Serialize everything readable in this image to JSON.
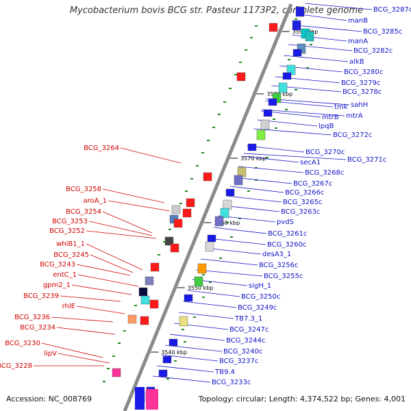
{
  "title": "Mycobacterium bovis BCG str. Pasteur 1173P2, complete genome",
  "footer": {
    "accession": "Accession: NC_008769",
    "stats": "Topology: circular; Length: 4,374,522 bp; Genes: 4,001"
  },
  "colors": {
    "backbone": "#8a8a8a",
    "forward_label": "#d00000",
    "reverse_label": "#1010c8",
    "gc_dot": "#1a8a1a"
  },
  "scale_ticks": [
    {
      "label": "3590 kbp"
    },
    {
      "label": "3580 kbp"
    },
    {
      "label": "3570 kbp"
    },
    {
      "label": "3560 kbp"
    },
    {
      "label": "3550 kbp"
    },
    {
      "label": "3540 kbp"
    }
  ],
  "genes_right": [
    "BCG_3287c",
    "manB",
    "BCG_3285c",
    "manA",
    "BCG_3282c",
    "alkB",
    "BCG_3280c",
    "BCG_3279c",
    "BCG_3278c",
    "sahH",
    "tmk",
    "mtrA",
    "mtrB",
    "lpqB",
    "BCG_3272c",
    "BCG_3271c",
    "BCG_3270c",
    "secA1",
    "BCG_3268c",
    "BCG_3267c",
    "BCG_3266c",
    "BCG_3265c",
    "BCG_3263c",
    "pvdS",
    "BCG_3261c",
    "BCG_3260c",
    "desA3_1",
    "BCG_3256c",
    "BCG_3255c",
    "sigH_1",
    "BCG_3250c",
    "BCG_3249c",
    "TB7.3_1",
    "BCG_3247c",
    "BCG_3244c",
    "BCG_3240c",
    "BCG_3237c",
    "TB9.4",
    "BCG_3233c"
  ],
  "genes_left": [
    "BCG_3264",
    "BCG_3258",
    "aroA_1",
    "BCG_3254",
    "BCG_3253",
    "BCG_3252",
    "whiB1_1",
    "BCG_3245",
    "BCG_3243",
    "entC_1",
    "gpm2_1",
    "BCG_3239",
    "rhlE",
    "BCG_3236",
    "BCG_3234",
    "BCG_3230",
    "lipV",
    "BCG_3228"
  ]
}
